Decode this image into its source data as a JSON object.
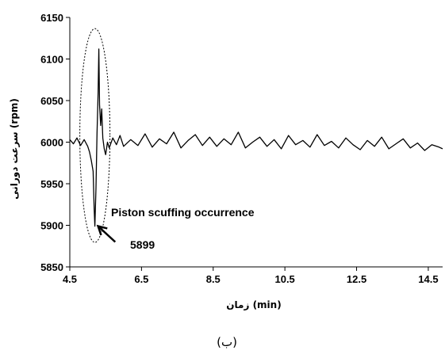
{
  "chart_data": {
    "type": "line",
    "xlabel": "زمان (min)",
    "ylabel": "سرعت دورانی (rpm)",
    "xlim": [
      4.5,
      14.9
    ],
    "ylim": [
      5850,
      6150
    ],
    "xticks": [
      "4.5",
      "6.5",
      "8.5",
      "10.5",
      "12.5",
      "14.5"
    ],
    "yticks": [
      "6150",
      "6100",
      "6050",
      "6000",
      "5950",
      "5900",
      "5850"
    ],
    "grid": false,
    "series": [
      {
        "values_x": [
          4.5,
          4.6,
          4.7,
          4.8,
          4.9,
          5.0,
          5.05,
          5.1,
          5.15,
          5.18,
          5.2,
          5.23,
          5.26,
          5.29,
          5.31,
          5.33,
          5.36,
          5.39,
          5.42,
          5.46,
          5.5,
          5.55,
          5.6,
          5.7,
          5.8,
          5.9,
          6.0,
          6.2,
          6.4,
          6.6,
          6.8,
          7.0,
          7.2,
          7.4,
          7.6,
          7.8,
          8.0,
          8.2,
          8.4,
          8.6,
          8.8,
          9.0,
          9.2,
          9.4,
          9.6,
          9.8,
          10.0,
          10.2,
          10.4,
          10.6,
          10.8,
          11.0,
          11.2,
          11.4,
          11.6,
          11.8,
          12.0,
          12.2,
          12.4,
          12.6,
          12.8,
          13.0,
          13.2,
          13.4,
          13.6,
          13.8,
          14.0,
          14.2,
          14.4,
          14.6,
          14.8,
          14.9
        ],
        "values_y": [
          6003,
          5998,
          6005,
          5996,
          6003,
          5995,
          5988,
          5978,
          5965,
          5920,
          5899,
          5945,
          6010,
          6060,
          6112,
          6045,
          6020,
          6040,
          6005,
          5992,
          5985,
          6000,
          5993,
          6005,
          5997,
          6008,
          5995,
          6003,
          5996,
          6010,
          5994,
          6004,
          5998,
          6012,
          5993,
          6002,
          6009,
          5996,
          6006,
          5995,
          6004,
          5997,
          6012,
          5993,
          6000,
          6006,
          5995,
          6003,
          5992,
          6008,
          5997,
          6002,
          5994,
          6009,
          5996,
          6001,
          5993,
          6005,
          5997,
          5991,
          6002,
          5995,
          6006,
          5992,
          5998,
          6004,
          5993,
          5999,
          5990,
          5997,
          5994,
          5992
        ]
      }
    ],
    "annotations": [
      {
        "text": "Piston scuffing occurrence",
        "x": 6.8,
        "y": 5910
      },
      {
        "text": "5899",
        "arrow_to": [
          5.2,
          5899
        ],
        "label_at": [
          5.9,
          5880
        ]
      }
    ]
  },
  "caption": "(ب)"
}
